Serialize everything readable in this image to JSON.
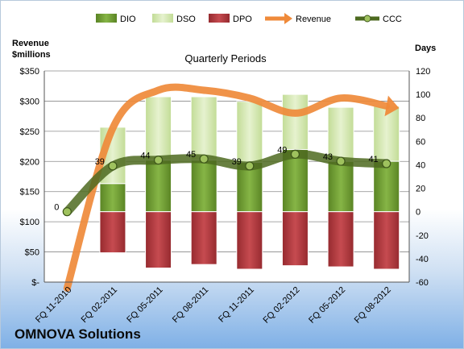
{
  "company_name": "OMNOVA Solutions",
  "colors": {
    "dio": "#6e9a2e",
    "dso": "#d6e8b0",
    "dpo": "#b2343a",
    "revenue": "#ef8a3a",
    "ccc": "#4d6a20"
  },
  "chart_data": {
    "type": "bar",
    "title": "Quarterly Periods",
    "y_left_label": [
      "Revenue",
      "$millions"
    ],
    "y_right_label": "Days",
    "y_left_ticks": [
      "$350",
      "$300",
      "$250",
      "$200",
      "$150",
      "$100",
      "$50",
      "$-"
    ],
    "y_left_range": [
      0,
      350
    ],
    "y_right_ticks": [
      "120",
      "100",
      "80",
      "60",
      "40",
      "20",
      "0",
      "-20",
      "-40",
      "-60"
    ],
    "y_right_range": [
      -60,
      120
    ],
    "grid": true,
    "legend": {
      "position": "top",
      "entries": [
        "DIO",
        "DSO",
        "DPO",
        "Revenue",
        "CCC"
      ]
    },
    "categories": [
      "FQ 11-2010",
      "FQ 02-2011",
      "FQ 05-2011",
      "FQ 08-2011",
      "FQ 11-2011",
      "FQ 02-2012",
      "FQ 05-2012",
      "FQ 08-2012"
    ],
    "series": [
      {
        "name": "DIO",
        "axis": "right",
        "values": [
          null,
          24,
          44,
          44,
          42,
          53,
          43,
          43
        ]
      },
      {
        "name": "DSO",
        "axis": "right",
        "values": [
          null,
          48,
          54,
          54,
          52,
          47,
          46,
          47
        ]
      },
      {
        "name": "DPO",
        "axis": "right",
        "values": [
          null,
          -35,
          -48,
          -45,
          -49,
          -46,
          -47,
          -49
        ]
      },
      {
        "name": "Revenue",
        "axis": "left",
        "values": [
          -10,
          255,
          318,
          318,
          305,
          280,
          305,
          292
        ]
      },
      {
        "name": "CCC",
        "axis": "right",
        "values": [
          0,
          39,
          44,
          45,
          39,
          49,
          43,
          41
        ]
      }
    ],
    "data_labels": [
      "0",
      "39",
      "44",
      "45",
      "39",
      "49",
      "43",
      "41"
    ]
  }
}
